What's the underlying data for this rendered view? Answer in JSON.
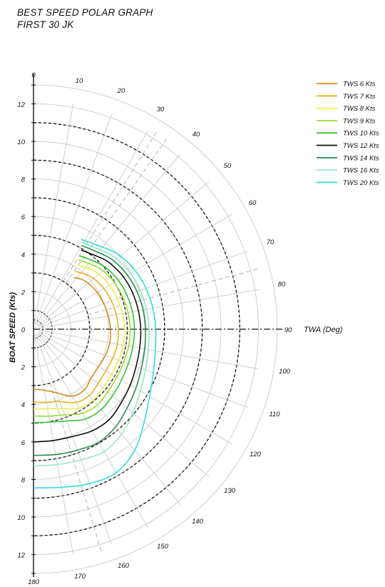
{
  "header": {
    "title": "BEST SPEED POLAR GRAPH",
    "subtitle": "FIRST 30 JK"
  },
  "chart_data": {
    "type": "line",
    "title": "BEST SPEED POLAR GRAPH",
    "subtitle": "FIRST 30 JK",
    "xlabel": "TWA (Deg)",
    "ylabel": "BOAT SPEED (Kts)",
    "angle_ticks": [
      "0",
      "10",
      "20",
      "30",
      "40",
      "50",
      "60",
      "70",
      "80",
      "90",
      "100",
      "110",
      "120",
      "130",
      "140",
      "150",
      "160",
      "170",
      "180"
    ],
    "speed_ticks": [
      "12",
      "10",
      "8",
      "6",
      "4",
      "2",
      "0",
      "2",
      "4",
      "6",
      "8",
      "10",
      "12"
    ],
    "speed_range": [
      0,
      12
    ],
    "angle_range": [
      0,
      180
    ],
    "legend_position": "top-right",
    "grid": true,
    "series": [
      {
        "name": "TWS 6 Kts",
        "color": "#d98a1c",
        "points": [
          [
            38,
            3.5
          ],
          [
            45,
            3.72
          ],
          [
            52,
            3.84
          ],
          [
            60,
            3.92
          ],
          [
            70,
            3.99
          ],
          [
            80,
            4.05
          ],
          [
            90,
            4.1
          ],
          [
            100,
            4.13
          ],
          [
            110,
            4.08
          ],
          [
            120,
            4.0
          ],
          [
            130,
            4.02
          ],
          [
            140,
            4.22
          ],
          [
            150,
            4.12
          ],
          [
            160,
            3.6
          ],
          [
            170,
            3.3
          ],
          [
            180,
            3.18
          ]
        ]
      },
      {
        "name": "TWS 7 Kts",
        "color": "#e8b21e",
        "points": [
          [
            36,
            3.8
          ],
          [
            45,
            4.08
          ],
          [
            52,
            4.22
          ],
          [
            60,
            4.33
          ],
          [
            70,
            4.42
          ],
          [
            80,
            4.48
          ],
          [
            90,
            4.52
          ],
          [
            100,
            4.54
          ],
          [
            110,
            4.5
          ],
          [
            120,
            4.45
          ],
          [
            130,
            4.5
          ],
          [
            140,
            4.62
          ],
          [
            150,
            4.5
          ],
          [
            160,
            4.1
          ],
          [
            170,
            3.95
          ],
          [
            180,
            3.88
          ]
        ]
      },
      {
        "name": "TWS 8 Kts",
        "color": "#f0ee45",
        "points": [
          [
            34,
            4.15
          ],
          [
            45,
            4.45
          ],
          [
            52,
            4.58
          ],
          [
            60,
            4.68
          ],
          [
            70,
            4.76
          ],
          [
            80,
            4.82
          ],
          [
            90,
            4.85
          ],
          [
            100,
            4.86
          ],
          [
            110,
            4.83
          ],
          [
            120,
            4.8
          ],
          [
            130,
            4.85
          ],
          [
            140,
            4.95
          ],
          [
            150,
            4.85
          ],
          [
            160,
            4.5
          ],
          [
            170,
            4.3
          ],
          [
            180,
            4.25
          ]
        ]
      },
      {
        "name": "TWS 9 Kts",
        "color": "#9fdc2e",
        "points": [
          [
            33,
            4.4
          ],
          [
            45,
            4.72
          ],
          [
            52,
            4.87
          ],
          [
            60,
            4.98
          ],
          [
            70,
            5.06
          ],
          [
            80,
            5.12
          ],
          [
            90,
            5.15
          ],
          [
            100,
            5.15
          ],
          [
            110,
            5.12
          ],
          [
            120,
            5.12
          ],
          [
            130,
            5.18
          ],
          [
            140,
            5.27
          ],
          [
            150,
            5.17
          ],
          [
            160,
            4.85
          ],
          [
            170,
            4.7
          ],
          [
            180,
            4.62
          ]
        ]
      },
      {
        "name": "TWS 10 Kts",
        "color": "#33c233",
        "points": [
          [
            32,
            4.62
          ],
          [
            45,
            4.95
          ],
          [
            52,
            5.1
          ],
          [
            60,
            5.22
          ],
          [
            70,
            5.3
          ],
          [
            80,
            5.36
          ],
          [
            90,
            5.38
          ],
          [
            100,
            5.38
          ],
          [
            110,
            5.38
          ],
          [
            120,
            5.42
          ],
          [
            130,
            5.5
          ],
          [
            140,
            5.6
          ],
          [
            150,
            5.52
          ],
          [
            160,
            5.2
          ],
          [
            170,
            5.02
          ],
          [
            180,
            4.98
          ]
        ]
      },
      {
        "name": "TWS 12 Kts",
        "color": "#111111",
        "points": [
          [
            31,
            4.92
          ],
          [
            45,
            5.28
          ],
          [
            52,
            5.43
          ],
          [
            60,
            5.55
          ],
          [
            70,
            5.63
          ],
          [
            80,
            5.68
          ],
          [
            90,
            5.72
          ],
          [
            100,
            5.75
          ],
          [
            110,
            5.82
          ],
          [
            120,
            5.95
          ],
          [
            130,
            6.1
          ],
          [
            140,
            6.28
          ],
          [
            150,
            6.25
          ],
          [
            160,
            6.08
          ],
          [
            170,
            6.02
          ],
          [
            180,
            6.0
          ]
        ]
      },
      {
        "name": "TWS 14 Kts",
        "color": "#2e8b57",
        "points": [
          [
            30,
            5.15
          ],
          [
            45,
            5.5
          ],
          [
            52,
            5.66
          ],
          [
            60,
            5.78
          ],
          [
            70,
            5.87
          ],
          [
            80,
            5.93
          ],
          [
            90,
            5.97
          ],
          [
            100,
            6.02
          ],
          [
            110,
            6.12
          ],
          [
            120,
            6.3
          ],
          [
            130,
            6.52
          ],
          [
            140,
            6.8
          ],
          [
            150,
            6.95
          ],
          [
            160,
            6.85
          ],
          [
            170,
            6.78
          ],
          [
            180,
            6.72
          ]
        ]
      },
      {
        "name": "TWS 16 Kts",
        "color": "#98e6c3",
        "points": [
          [
            29,
            5.3
          ],
          [
            45,
            5.68
          ],
          [
            52,
            5.84
          ],
          [
            60,
            5.97
          ],
          [
            70,
            6.06
          ],
          [
            80,
            6.12
          ],
          [
            90,
            6.16
          ],
          [
            100,
            6.22
          ],
          [
            110,
            6.35
          ],
          [
            120,
            6.58
          ],
          [
            130,
            6.92
          ],
          [
            140,
            7.3
          ],
          [
            150,
            7.52
          ],
          [
            160,
            7.4
          ],
          [
            170,
            7.32
          ],
          [
            180,
            7.28
          ]
        ]
      },
      {
        "name": "TWS 20 Kts",
        "color": "#33dcd8",
        "points": [
          [
            28,
            5.42
          ],
          [
            45,
            5.9
          ],
          [
            52,
            6.1
          ],
          [
            60,
            6.26
          ],
          [
            70,
            6.38
          ],
          [
            80,
            6.46
          ],
          [
            90,
            6.52
          ],
          [
            100,
            6.6
          ],
          [
            110,
            6.8
          ],
          [
            120,
            7.15
          ],
          [
            130,
            7.7
          ],
          [
            140,
            8.4
          ],
          [
            150,
            8.82
          ],
          [
            160,
            8.75
          ],
          [
            170,
            8.55
          ],
          [
            180,
            8.45
          ]
        ]
      }
    ]
  }
}
